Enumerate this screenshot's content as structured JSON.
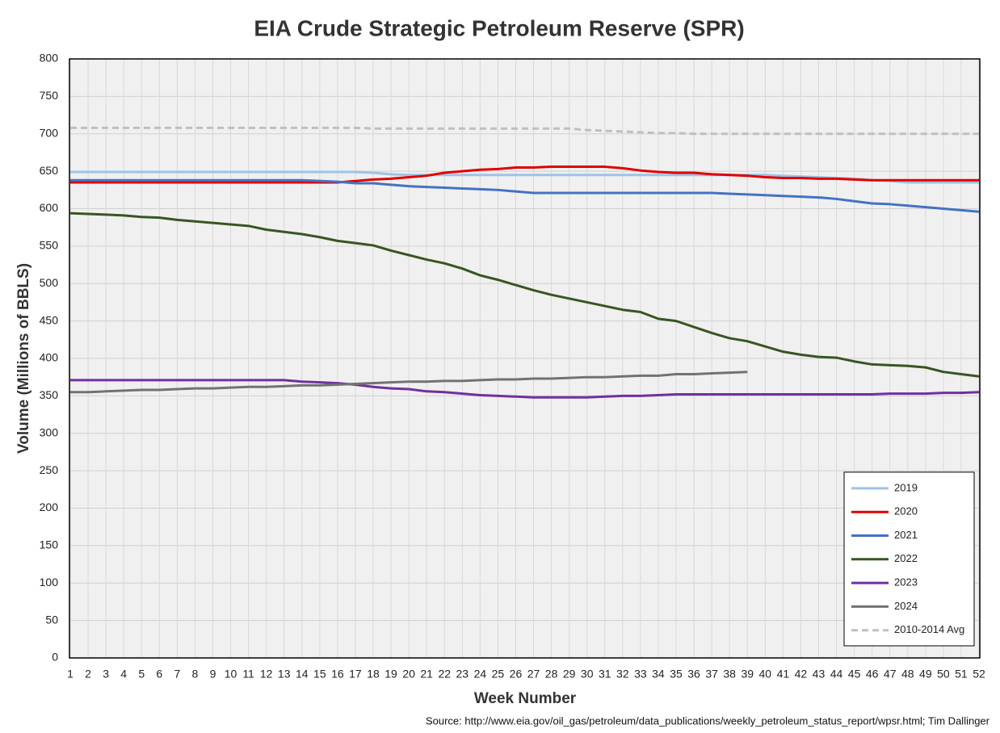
{
  "chart_data": {
    "type": "line",
    "title": "EIA Crude Strategic Petroleum Reserve (SPR)",
    "x_label": "Week Number",
    "y_label": "Volume (Millions of BBLS)",
    "source": "Source: http://www.eia.gov/oil_gas/petroleum/data_publications/weekly_petroleum_status_report/wpsr.html; Tim Dallinger",
    "x": [
      1,
      2,
      3,
      4,
      5,
      6,
      7,
      8,
      9,
      10,
      11,
      12,
      13,
      14,
      15,
      16,
      17,
      18,
      19,
      20,
      21,
      22,
      23,
      24,
      25,
      26,
      27,
      28,
      29,
      30,
      31,
      32,
      33,
      34,
      35,
      36,
      37,
      38,
      39,
      40,
      41,
      42,
      43,
      44,
      45,
      46,
      47,
      48,
      49,
      50,
      51,
      52
    ],
    "xlim": [
      1,
      52
    ],
    "xticks": [
      1,
      2,
      3,
      4,
      5,
      6,
      7,
      8,
      9,
      10,
      11,
      12,
      13,
      14,
      15,
      16,
      17,
      18,
      19,
      20,
      21,
      22,
      23,
      24,
      25,
      26,
      27,
      28,
      29,
      30,
      31,
      32,
      33,
      34,
      35,
      36,
      37,
      38,
      39,
      40,
      41,
      42,
      43,
      44,
      45,
      46,
      47,
      48,
      49,
      50,
      51,
      52
    ],
    "ylim": [
      0,
      800
    ],
    "yticks": [
      0,
      50,
      100,
      150,
      200,
      250,
      300,
      350,
      400,
      450,
      500,
      550,
      600,
      650,
      700,
      750,
      800
    ],
    "grid": true,
    "legend": "lower right",
    "series": [
      {
        "name": "2019",
        "color": "#9dc3e6",
        "values": [
          649,
          649,
          649,
          649,
          649,
          649,
          649,
          649,
          649,
          649,
          649,
          649,
          649,
          649,
          649,
          649,
          649,
          648,
          646,
          645,
          645,
          645,
          645,
          645,
          645,
          645,
          645,
          645,
          645,
          645,
          645,
          645,
          645,
          645,
          645,
          645,
          645,
          645,
          645,
          645,
          644,
          643,
          642,
          641,
          640,
          638,
          637,
          635,
          635,
          635,
          635,
          635
        ]
      },
      {
        "name": "2020",
        "color": "#e00000",
        "values": [
          635,
          635,
          635,
          635,
          635,
          635,
          635,
          635,
          635,
          635,
          635,
          635,
          635,
          635,
          635,
          635,
          637,
          639,
          640,
          642,
          644,
          648,
          650,
          652,
          653,
          655,
          655,
          656,
          656,
          656,
          656,
          654,
          651,
          649,
          648,
          648,
          646,
          645,
          644,
          642,
          641,
          641,
          640,
          640,
          639,
          638,
          638,
          638,
          638,
          638,
          638,
          638
        ]
      },
      {
        "name": "2021",
        "color": "#4472c4",
        "values": [
          638,
          638,
          638,
          638,
          638,
          638,
          638,
          638,
          638,
          638,
          638,
          638,
          638,
          638,
          637,
          636,
          634,
          634,
          632,
          630,
          629,
          628,
          627,
          626,
          625,
          623,
          621,
          621,
          621,
          621,
          621,
          621,
          621,
          621,
          621,
          621,
          621,
          620,
          619,
          618,
          617,
          616,
          615,
          613,
          610,
          607,
          606,
          604,
          602,
          600,
          598,
          596
        ]
      },
      {
        "name": "2022",
        "color": "#375623",
        "values": [
          594,
          593,
          592,
          591,
          589,
          588,
          585,
          583,
          581,
          579,
          577,
          572,
          569,
          566,
          562,
          557,
          554,
          551,
          544,
          538,
          532,
          527,
          520,
          511,
          505,
          498,
          491,
          485,
          480,
          475,
          470,
          465,
          462,
          453,
          450,
          442,
          434,
          427,
          423,
          416,
          409,
          405,
          402,
          401,
          396,
          392,
          391,
          390,
          388,
          382,
          379,
          376
        ]
      },
      {
        "name": "2023",
        "color": "#7030a0",
        "values": [
          371,
          371,
          371,
          371,
          371,
          371,
          371,
          371,
          371,
          371,
          371,
          371,
          371,
          369,
          368,
          367,
          365,
          362,
          360,
          359,
          356,
          355,
          353,
          351,
          350,
          349,
          348,
          348,
          348,
          348,
          349,
          350,
          350,
          351,
          352,
          352,
          352,
          352,
          352,
          352,
          352,
          352,
          352,
          352,
          352,
          352,
          353,
          353,
          353,
          354,
          354,
          355
        ]
      },
      {
        "name": "2024",
        "color": "#767171",
        "values": [
          355,
          355,
          356,
          357,
          358,
          358,
          359,
          360,
          360,
          361,
          362,
          362,
          363,
          364,
          364,
          365,
          366,
          367,
          368,
          369,
          369,
          370,
          370,
          371,
          372,
          372,
          373,
          373,
          374,
          375,
          375,
          376,
          377,
          377,
          379,
          379,
          380,
          381,
          382,
          null,
          null,
          null,
          null,
          null,
          null,
          null,
          null,
          null,
          null,
          null,
          null,
          null
        ]
      },
      {
        "name": "2010-2014 Avg",
        "color": "#bfbfbf",
        "dash": true,
        "values": [
          708,
          708,
          708,
          708,
          708,
          708,
          708,
          708,
          708,
          708,
          708,
          708,
          708,
          708,
          708,
          708,
          708,
          707,
          707,
          707,
          707,
          707,
          707,
          707,
          707,
          707,
          707,
          707,
          707,
          705,
          704,
          703,
          702,
          701,
          701,
          700,
          700,
          700,
          700,
          700,
          700,
          700,
          700,
          700,
          700,
          700,
          700,
          700,
          700,
          700,
          700,
          700
        ]
      }
    ]
  }
}
